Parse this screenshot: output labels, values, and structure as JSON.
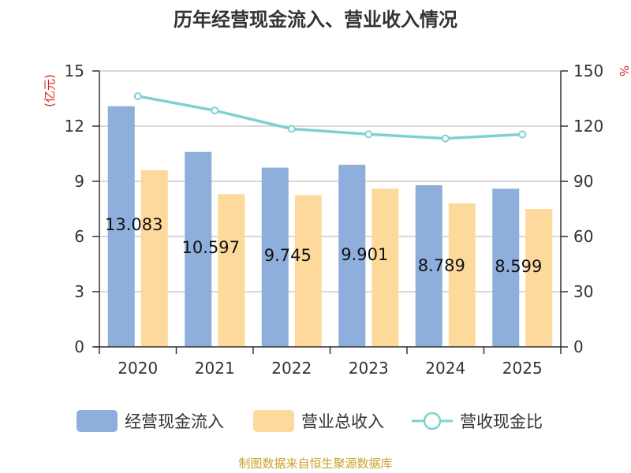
{
  "chart_data": {
    "type": "bar+line",
    "title": "历年经营现金流入、营业收入情况",
    "categories": [
      "2020",
      "2021",
      "2022",
      "2023",
      "2024",
      "2025"
    ],
    "series": [
      {
        "name": "经营现金流入",
        "type": "bar",
        "axis": "left",
        "color": "#8eaedb",
        "values": [
          13.083,
          10.597,
          9.745,
          9.901,
          8.789,
          8.599
        ],
        "labels": [
          "13.083",
          "10.597",
          "9.745",
          "9.901",
          "8.789",
          "8.599"
        ]
      },
      {
        "name": "营业总收入",
        "type": "bar",
        "axis": "left",
        "color": "#fdd99b",
        "values": [
          9.6,
          8.3,
          8.25,
          8.6,
          7.8,
          7.5
        ]
      },
      {
        "name": "营收现金比",
        "type": "line",
        "axis": "right",
        "color": "#7fd0d4",
        "values": [
          136.3,
          128.5,
          118.5,
          115.6,
          113.3,
          115.5
        ]
      }
    ],
    "y_left": {
      "label": "(亿元)",
      "min": 0,
      "max": 15,
      "ticks": [
        "0",
        "3",
        "6",
        "9",
        "12",
        "15"
      ]
    },
    "y_right": {
      "label": "%",
      "min": 0,
      "max": 150,
      "ticks": [
        "0",
        "30",
        "60",
        "90",
        "120",
        "150"
      ]
    },
    "grid": true,
    "legend_position": "bottom"
  },
  "source_text": "制图数据来自恒生聚源数据库"
}
